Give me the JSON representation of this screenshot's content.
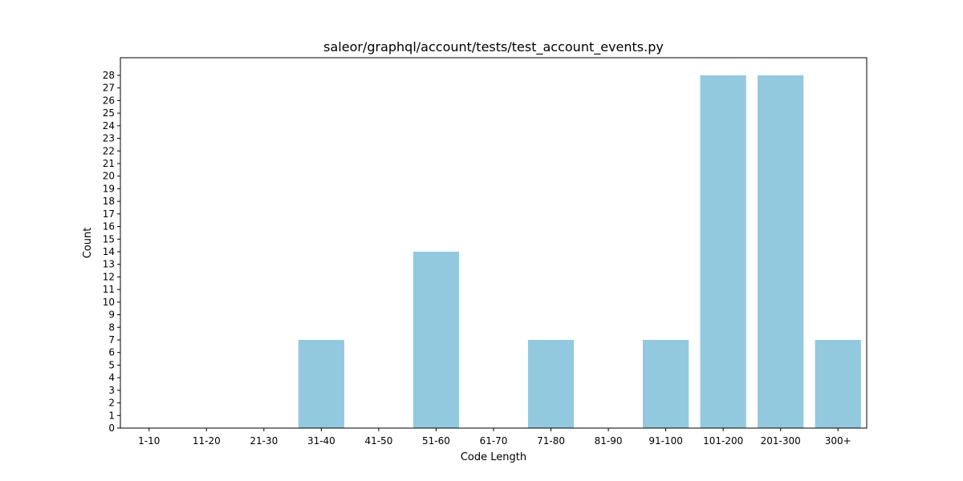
{
  "chart_data": {
    "type": "bar",
    "title": "saleor/graphql/account/tests/test_account_events.py",
    "xlabel": "Code Length",
    "ylabel": "Count",
    "categories": [
      "1-10",
      "11-20",
      "21-30",
      "31-40",
      "41-50",
      "51-60",
      "61-70",
      "71-80",
      "81-90",
      "91-100",
      "101-200",
      "201-300",
      "300+"
    ],
    "values": [
      0,
      0,
      0,
      7,
      0,
      14,
      0,
      7,
      0,
      7,
      28,
      28,
      7
    ],
    "ylim": [
      0,
      29.4
    ],
    "yticks": [
      0,
      1,
      2,
      3,
      4,
      5,
      6,
      7,
      8,
      9,
      10,
      11,
      12,
      13,
      14,
      15,
      16,
      17,
      18,
      19,
      20,
      21,
      22,
      23,
      24,
      25,
      26,
      27,
      28
    ],
    "bar_color": "#92c9df",
    "grid": false,
    "legend": "none"
  }
}
